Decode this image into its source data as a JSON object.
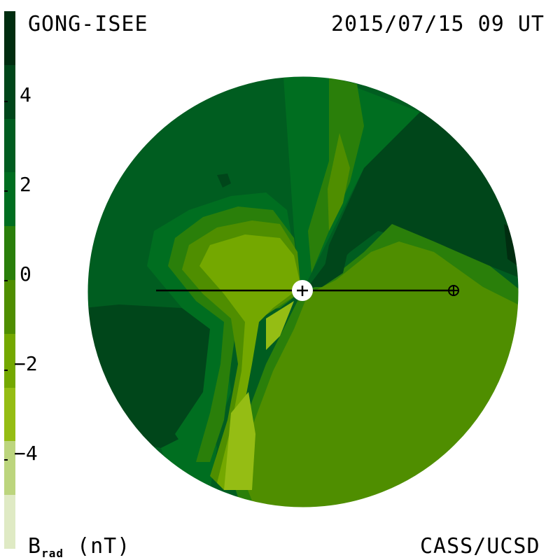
{
  "header": {
    "left_title": "GONG-ISEE",
    "right_title": "2015/07/15 09 UT"
  },
  "footer": {
    "credit": "CASS/UCSD",
    "unit_main": "B",
    "unit_sub": "rad",
    "unit_tail": " (nT)"
  },
  "colorbar": {
    "ticks": [
      {
        "value": 4,
        "label": "4"
      },
      {
        "value": 2,
        "label": "2"
      },
      {
        "value": 0,
        "label": "0"
      },
      {
        "value": -2,
        "label": "−2"
      },
      {
        "value": -4,
        "label": "−4"
      }
    ],
    "range": [
      -6,
      6
    ],
    "colors_top_to_bottom": [
      "#002d10",
      "#00461a",
      "#005d20",
      "#006e20",
      "#2a7f0a",
      "#4f8e00",
      "#74a800",
      "#95bd14",
      "#bcd57d",
      "#dfeac4"
    ]
  },
  "markers": {
    "sun": "sun-icon",
    "earth": "earth-icon"
  }
}
